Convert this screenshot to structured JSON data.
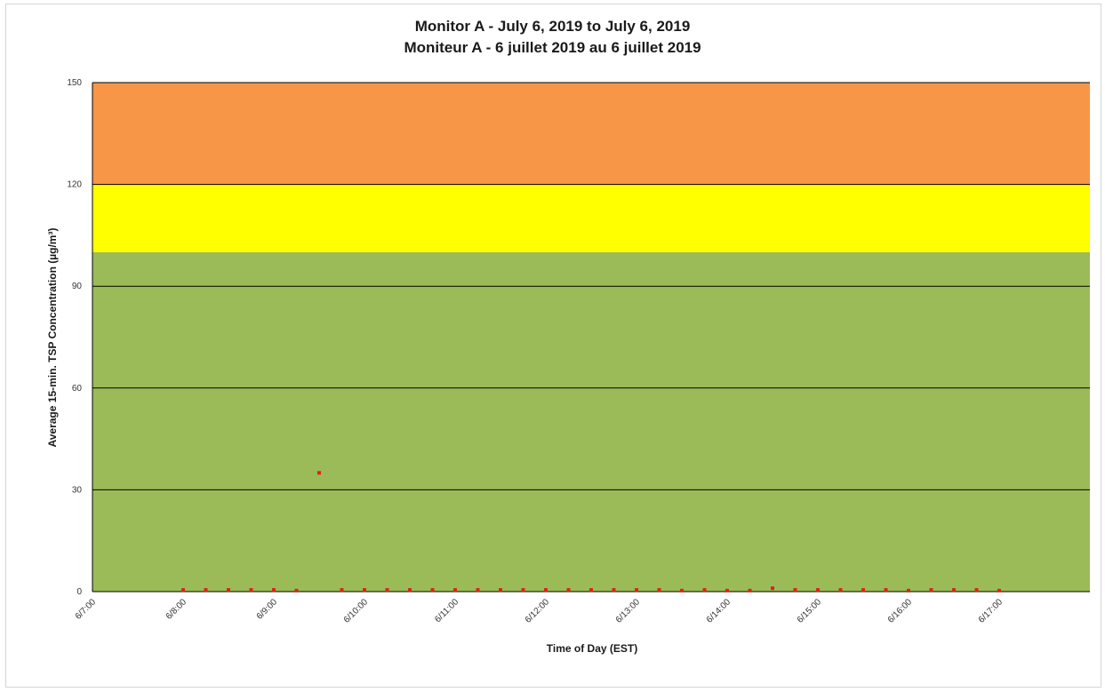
{
  "chart_data": {
    "type": "scatter",
    "title": "Monitor A - July 6, 2019 to July 6, 2019",
    "subtitle": "Moniteur A - 6 juillet 2019 au 6 juillet 2019",
    "xlabel": "Time of Day (EST)",
    "ylabel": "Average 15-min. TSP Concentration (µg/m³)",
    "ylim": [
      0,
      150
    ],
    "yticks": [
      0,
      30,
      60,
      90,
      120,
      150
    ],
    "xlim_hours": [
      7,
      18
    ],
    "xticks": [
      {
        "hour": 7,
        "label": "6/7:00"
      },
      {
        "hour": 8,
        "label": "6/8:00"
      },
      {
        "hour": 9,
        "label": "6/9:00"
      },
      {
        "hour": 10,
        "label": "6/10:00"
      },
      {
        "hour": 11,
        "label": "6/11:00"
      },
      {
        "hour": 12,
        "label": "6/12:00"
      },
      {
        "hour": 13,
        "label": "6/13:00"
      },
      {
        "hour": 14,
        "label": "6/14:00"
      },
      {
        "hour": 15,
        "label": "6/15:00"
      },
      {
        "hour": 16,
        "label": "6/16:00"
      },
      {
        "hour": 17,
        "label": "6/17:00"
      }
    ],
    "grid": true,
    "bands": [
      {
        "from": 0,
        "to": 100,
        "color": "#9bbb59"
      },
      {
        "from": 100,
        "to": 120,
        "color": "#ffff00"
      },
      {
        "from": 120,
        "to": 150,
        "color": "#f79646"
      }
    ],
    "series": [
      {
        "color": "#e0201b",
        "points": [
          {
            "hour": 8.0,
            "value": 0.5
          },
          {
            "hour": 8.25,
            "value": 0.5
          },
          {
            "hour": 8.5,
            "value": 0.5
          },
          {
            "hour": 8.75,
            "value": 0.5
          },
          {
            "hour": 9.0,
            "value": 0.5
          },
          {
            "hour": 9.25,
            "value": 0.3
          },
          {
            "hour": 9.5,
            "value": 35
          },
          {
            "hour": 9.75,
            "value": 0.5
          },
          {
            "hour": 10.0,
            "value": 0.5
          },
          {
            "hour": 10.25,
            "value": 0.5
          },
          {
            "hour": 10.5,
            "value": 0.5
          },
          {
            "hour": 10.75,
            "value": 0.5
          },
          {
            "hour": 11.0,
            "value": 0.5
          },
          {
            "hour": 11.25,
            "value": 0.5
          },
          {
            "hour": 11.5,
            "value": 0.5
          },
          {
            "hour": 11.75,
            "value": 0.5
          },
          {
            "hour": 12.0,
            "value": 0.5
          },
          {
            "hour": 12.25,
            "value": 0.5
          },
          {
            "hour": 12.5,
            "value": 0.5
          },
          {
            "hour": 12.75,
            "value": 0.5
          },
          {
            "hour": 13.0,
            "value": 0.5
          },
          {
            "hour": 13.25,
            "value": 0.5
          },
          {
            "hour": 13.5,
            "value": 0.3
          },
          {
            "hour": 13.75,
            "value": 0.5
          },
          {
            "hour": 14.0,
            "value": 0.3
          },
          {
            "hour": 14.25,
            "value": 0.3
          },
          {
            "hour": 14.5,
            "value": 1.0
          },
          {
            "hour": 14.75,
            "value": 0.5
          },
          {
            "hour": 15.0,
            "value": 0.5
          },
          {
            "hour": 15.25,
            "value": 0.5
          },
          {
            "hour": 15.5,
            "value": 0.5
          },
          {
            "hour": 15.75,
            "value": 0.5
          },
          {
            "hour": 16.0,
            "value": 0.3
          },
          {
            "hour": 16.25,
            "value": 0.5
          },
          {
            "hour": 16.5,
            "value": 0.5
          },
          {
            "hour": 16.75,
            "value": 0.5
          },
          {
            "hour": 17.0,
            "value": 0.3
          }
        ]
      }
    ]
  }
}
